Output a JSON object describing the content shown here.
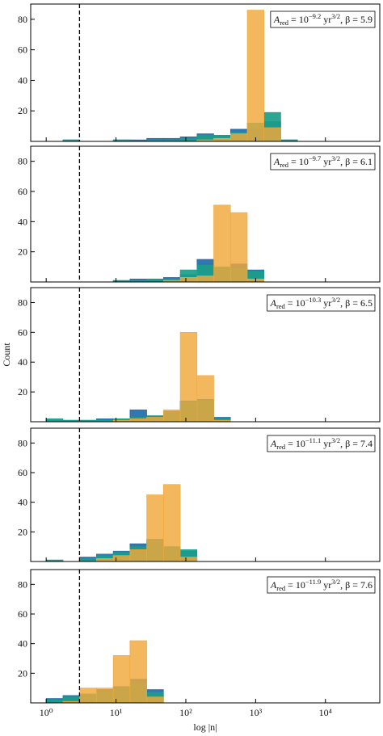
{
  "chart_data": [
    {
      "type": "histogram",
      "log_x": true,
      "xlim": [
        0.6,
        60000
      ],
      "ylim": [
        0,
        90
      ],
      "yticks": [
        20,
        40,
        60,
        80
      ],
      "xticks": [
        1,
        10,
        100,
        1000,
        10000
      ],
      "vline": 3,
      "bins": [
        1,
        1.738,
        3.02,
        5.248,
        9.12,
        15.85,
        27.54,
        47.86,
        83.18,
        144.5,
        251.2,
        436.5,
        758.6,
        1318,
        2291,
        3981
      ],
      "series": [
        {
          "color": "#1f6cab",
          "values": [
            0,
            1,
            0,
            0,
            1,
            1,
            2,
            2,
            3,
            5,
            4,
            8,
            8,
            13,
            1
          ]
        },
        {
          "color": "#1a9e8a",
          "values": [
            0,
            1,
            0,
            0,
            1,
            0,
            1,
            1,
            2,
            4,
            4,
            6,
            12,
            19,
            1
          ]
        },
        {
          "color": "#f0a83a",
          "values": [
            0,
            0,
            0,
            0,
            0,
            0,
            0,
            0,
            0,
            1,
            2,
            5,
            86,
            9,
            0
          ]
        }
      ],
      "annotation": [
        {
          "text": "A"
        },
        {
          "text": "red",
          "sub": true
        },
        {
          "text": " = 10"
        },
        {
          "text": "−9.2",
          "sup": true
        },
        {
          "text": " yr"
        },
        {
          "text": "3/2",
          "sup": true
        },
        {
          "text": ", β = 5.9"
        }
      ]
    },
    {
      "type": "histogram",
      "log_x": true,
      "xlim": [
        0.6,
        60000
      ],
      "ylim": [
        0,
        90
      ],
      "yticks": [
        20,
        40,
        60,
        80
      ],
      "xticks": [
        1,
        10,
        100,
        1000,
        10000
      ],
      "vline": 3,
      "bins": [
        1,
        1.738,
        3.02,
        5.248,
        9.12,
        15.85,
        27.54,
        47.86,
        83.18,
        144.5,
        251.2,
        436.5,
        758.6,
        1318,
        2291,
        3981
      ],
      "series": [
        {
          "color": "#1f6cab",
          "values": [
            0,
            0,
            0,
            0,
            1,
            2,
            2,
            3,
            5,
            15,
            9,
            12,
            8,
            0,
            0
          ]
        },
        {
          "color": "#1a9e8a",
          "values": [
            0,
            0,
            0,
            0,
            1,
            1,
            2,
            2,
            8,
            11,
            10,
            9,
            7,
            0,
            0
          ]
        },
        {
          "color": "#f0a83a",
          "values": [
            0,
            0,
            0,
            0,
            0,
            0,
            0,
            1,
            3,
            4,
            51,
            46,
            2,
            0,
            0
          ]
        }
      ],
      "annotation": [
        {
          "text": "A"
        },
        {
          "text": "red",
          "sub": true
        },
        {
          "text": " = 10"
        },
        {
          "text": "−9.7",
          "sup": true
        },
        {
          "text": " yr"
        },
        {
          "text": "3/2",
          "sup": true
        },
        {
          "text": ", β = 6.1"
        }
      ]
    },
    {
      "type": "histogram",
      "log_x": true,
      "xlim": [
        0.6,
        60000
      ],
      "ylim": [
        0,
        90
      ],
      "yticks": [
        20,
        40,
        60,
        80
      ],
      "xticks": [
        1,
        10,
        100,
        1000,
        10000
      ],
      "vline": 3,
      "ylabel": "Count",
      "bins": [
        1,
        1.738,
        3.02,
        5.248,
        9.12,
        15.85,
        27.54,
        47.86,
        83.18,
        144.5,
        251.2,
        436.5,
        758.6,
        1318,
        2291,
        3981
      ],
      "series": [
        {
          "color": "#1f6cab",
          "values": [
            1,
            1,
            1,
            2,
            2,
            8,
            4,
            7,
            14,
            15,
            3,
            0,
            0,
            0,
            0
          ]
        },
        {
          "color": "#1a9e8a",
          "values": [
            2,
            1,
            1,
            1,
            2,
            3,
            4,
            6,
            13,
            14,
            2,
            0,
            0,
            0,
            0
          ]
        },
        {
          "color": "#f0a83a",
          "values": [
            0,
            0,
            0,
            0,
            1,
            2,
            3,
            8,
            60,
            31,
            1,
            0,
            0,
            0,
            0
          ]
        }
      ],
      "annotation": [
        {
          "text": "A"
        },
        {
          "text": "red",
          "sub": true
        },
        {
          "text": " = 10"
        },
        {
          "text": "−10.3",
          "sup": true
        },
        {
          "text": " yr"
        },
        {
          "text": "3/2",
          "sup": true
        },
        {
          "text": ", β = 6.5"
        }
      ]
    },
    {
      "type": "histogram",
      "log_x": true,
      "xlim": [
        0.6,
        60000
      ],
      "ylim": [
        0,
        90
      ],
      "yticks": [
        20,
        40,
        60,
        80
      ],
      "xticks": [
        1,
        10,
        100,
        1000,
        10000
      ],
      "vline": 3,
      "bins": [
        1,
        1.738,
        3.02,
        5.248,
        9.12,
        15.85,
        27.54,
        47.86,
        83.18,
        144.5,
        251.2,
        436.5,
        758.6,
        1318,
        2291,
        3981
      ],
      "series": [
        {
          "color": "#1f6cab",
          "values": [
            1,
            0,
            3,
            5,
            7,
            12,
            15,
            10,
            7,
            0,
            0,
            0,
            0,
            0,
            0
          ]
        },
        {
          "color": "#1a9e8a",
          "values": [
            1,
            0,
            2,
            4,
            6,
            10,
            14,
            10,
            8,
            0,
            0,
            0,
            0,
            0,
            0
          ]
        },
        {
          "color": "#f0a83a",
          "values": [
            0,
            0,
            0,
            2,
            4,
            8,
            45,
            52,
            3,
            0,
            0,
            0,
            0,
            0,
            0
          ]
        }
      ],
      "annotation": [
        {
          "text": "A"
        },
        {
          "text": "red",
          "sub": true
        },
        {
          "text": " = 10"
        },
        {
          "text": "−11.1",
          "sup": true
        },
        {
          "text": " yr"
        },
        {
          "text": "3/2",
          "sup": true
        },
        {
          "text": ", β = 7.4"
        }
      ]
    },
    {
      "type": "histogram",
      "log_x": true,
      "xlim": [
        0.6,
        60000
      ],
      "ylim": [
        0,
        90
      ],
      "yticks": [
        20,
        40,
        60,
        80
      ],
      "vline": 3,
      "xlabel": "log |n|",
      "xticks": [
        {
          "value": 1,
          "label": "10⁰"
        },
        {
          "value": 10,
          "label": "10¹"
        },
        {
          "value": 100,
          "label": "10²"
        },
        {
          "value": 1000,
          "label": "10³"
        },
        {
          "value": 10000,
          "label": "10⁴"
        }
      ],
      "bins": [
        1,
        1.738,
        3.02,
        5.248,
        9.12,
        15.85,
        27.54,
        47.86,
        83.18,
        144.5,
        251.2,
        436.5,
        758.6,
        1318,
        2291,
        3981
      ],
      "series": [
        {
          "color": "#1f6cab",
          "values": [
            3,
            5,
            6,
            9,
            11,
            16,
            9,
            0,
            0,
            0,
            0,
            0,
            0,
            0,
            0
          ]
        },
        {
          "color": "#1a9e8a",
          "values": [
            2,
            4,
            6,
            8,
            10,
            13,
            7,
            0,
            0,
            0,
            0,
            0,
            0,
            0,
            0
          ]
        },
        {
          "color": "#f0a83a",
          "values": [
            0,
            1,
            10,
            10,
            32,
            42,
            4,
            0,
            0,
            0,
            0,
            0,
            0,
            0,
            0
          ]
        }
      ],
      "annotation": [
        {
          "text": "A"
        },
        {
          "text": "red",
          "sub": true
        },
        {
          "text": " = 10"
        },
        {
          "text": "−11.9",
          "sup": true
        },
        {
          "text": " yr"
        },
        {
          "text": "3/2",
          "sup": true
        },
        {
          "text": ", β = 7.6"
        }
      ]
    }
  ]
}
